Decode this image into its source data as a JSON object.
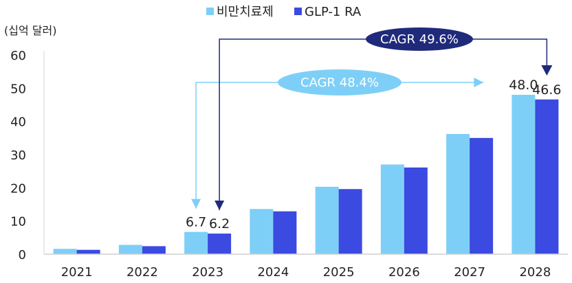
{
  "chart_data": {
    "type": "bar",
    "title": "",
    "ylabel": "(십억 달러)",
    "xlabel": "",
    "ylim": [
      0,
      60
    ],
    "yticks": [
      0,
      10,
      20,
      30,
      40,
      50,
      60
    ],
    "grid": false,
    "legend_position": "top-center",
    "categories": [
      "2021",
      "2022",
      "2023",
      "2024",
      "2025",
      "2026",
      "2027",
      "2028"
    ],
    "series": [
      {
        "name": "비만치료제",
        "color": "#7ecff7",
        "values": [
          1.6,
          2.8,
          6.7,
          13.6,
          20.3,
          27.0,
          36.2,
          48.0
        ]
      },
      {
        "name": "GLP-1 RA",
        "color": "#3b4ae0",
        "values": [
          1.3,
          2.4,
          6.2,
          12.9,
          19.6,
          26.1,
          35.0,
          46.6
        ]
      }
    ],
    "data_labels": [
      {
        "series": 0,
        "category": "2023",
        "text": "6.7"
      },
      {
        "series": 1,
        "category": "2023",
        "text": "6.2"
      },
      {
        "series": 0,
        "category": "2028",
        "text": "48.0"
      },
      {
        "series": 1,
        "category": "2028",
        "text": "46.6"
      }
    ],
    "annotations": [
      {
        "text": "CAGR 48.4%",
        "series": 0,
        "from": "2023",
        "to": "2028",
        "fill": "#7ecff7",
        "text_color": "#ffffff"
      },
      {
        "text": "CAGR 49.6%",
        "series": 1,
        "from": "2023",
        "to": "2028",
        "fill": "#1f2a7a",
        "text_color": "#ffffff"
      }
    ]
  }
}
